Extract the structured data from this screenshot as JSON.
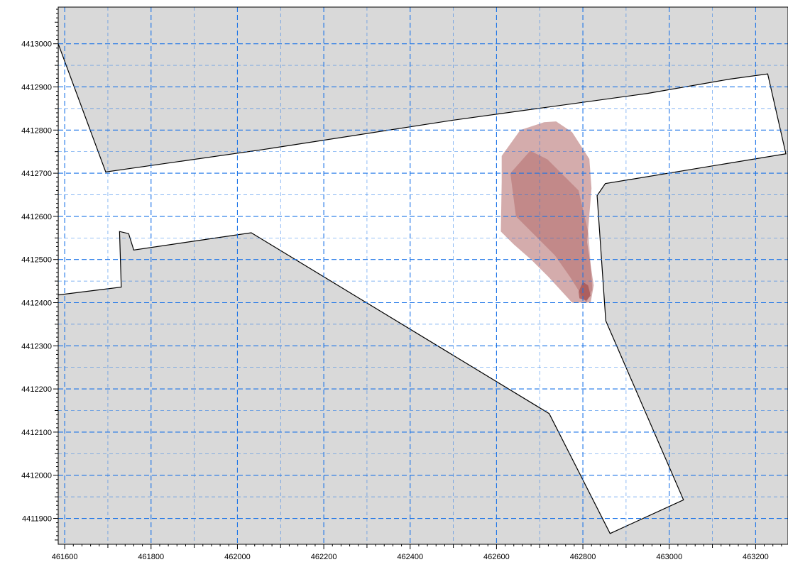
{
  "chart_data": {
    "type": "map",
    "x_axis": {
      "range": [
        461585,
        463275
      ],
      "ticks": [
        461600,
        461800,
        462000,
        462200,
        462400,
        462600,
        462800,
        463000,
        463200
      ],
      "labels": [
        "461600",
        "461800",
        "462000",
        "462200",
        "462400",
        "462600",
        "462800",
        "463000",
        "463200"
      ]
    },
    "y_axis": {
      "range": [
        4411840,
        4413085
      ],
      "ticks": [
        4411900,
        4412000,
        4412100,
        4412200,
        4412300,
        4412400,
        4412500,
        4412600,
        4412700,
        4412800,
        4412900,
        4413000
      ],
      "labels": [
        "4411900",
        "4412000",
        "4412100",
        "4412200",
        "4412300",
        "4412400",
        "4412500",
        "4412600",
        "4412700",
        "4412800",
        "4412900",
        "4413000"
      ]
    },
    "grid": {
      "major": true,
      "minor": true,
      "color": "#1a73e8"
    },
    "colors": {
      "land": "#d9d9d9",
      "water": "#ffffff",
      "coastline": "#000000",
      "plume": "#a04848"
    },
    "water_boundary": [
      [
        461585,
        4413000
      ],
      [
        461695,
        4412703
      ],
      [
        462060,
        4412755
      ],
      [
        462500,
        4412823
      ],
      [
        462950,
        4412885
      ],
      [
        463140,
        4412918
      ],
      [
        463228,
        4412930
      ],
      [
        463270,
        4412745
      ],
      [
        462852,
        4412676
      ],
      [
        462833,
        4412648
      ],
      [
        462853,
        4412358
      ],
      [
        463033,
        4411943
      ],
      [
        462863,
        4411865
      ],
      [
        462722,
        4412143
      ],
      [
        462032,
        4412562
      ],
      [
        461760,
        4412522
      ],
      [
        461748,
        4412560
      ],
      [
        461727,
        4412565
      ],
      [
        461731,
        4412436
      ],
      [
        461585,
        4412418
      ]
    ],
    "plumes": [
      {
        "points": [
          [
            462612,
            4412740
          ],
          [
            462655,
            4412800
          ],
          [
            462710,
            4412818
          ],
          [
            462738,
            4412820
          ],
          [
            462775,
            4412795
          ],
          [
            462815,
            4412733
          ],
          [
            462820,
            4412665
          ],
          [
            462810,
            4412540
          ],
          [
            462825,
            4412440
          ],
          [
            462818,
            4412400
          ],
          [
            462775,
            4412400
          ],
          [
            462720,
            4412460
          ],
          [
            462680,
            4412500
          ],
          [
            462640,
            4412535
          ],
          [
            462610,
            4412565
          ],
          [
            462612,
            4412680
          ]
        ],
        "opacity": 0.45
      },
      {
        "points": [
          [
            462632,
            4412700
          ],
          [
            462678,
            4412752
          ],
          [
            462718,
            4412732
          ],
          [
            462790,
            4412660
          ],
          [
            462813,
            4412560
          ],
          [
            462822,
            4412430
          ],
          [
            462808,
            4412400
          ],
          [
            462770,
            4412460
          ],
          [
            462735,
            4412510
          ],
          [
            462645,
            4412600
          ]
        ],
        "opacity": 0.35
      },
      {
        "points": [
          [
            462790,
            4412425
          ],
          [
            462800,
            4412448
          ],
          [
            462812,
            4412440
          ],
          [
            462818,
            4412416
          ],
          [
            462808,
            4412405
          ],
          [
            462792,
            4412410
          ]
        ],
        "opacity": 0.65
      }
    ]
  }
}
